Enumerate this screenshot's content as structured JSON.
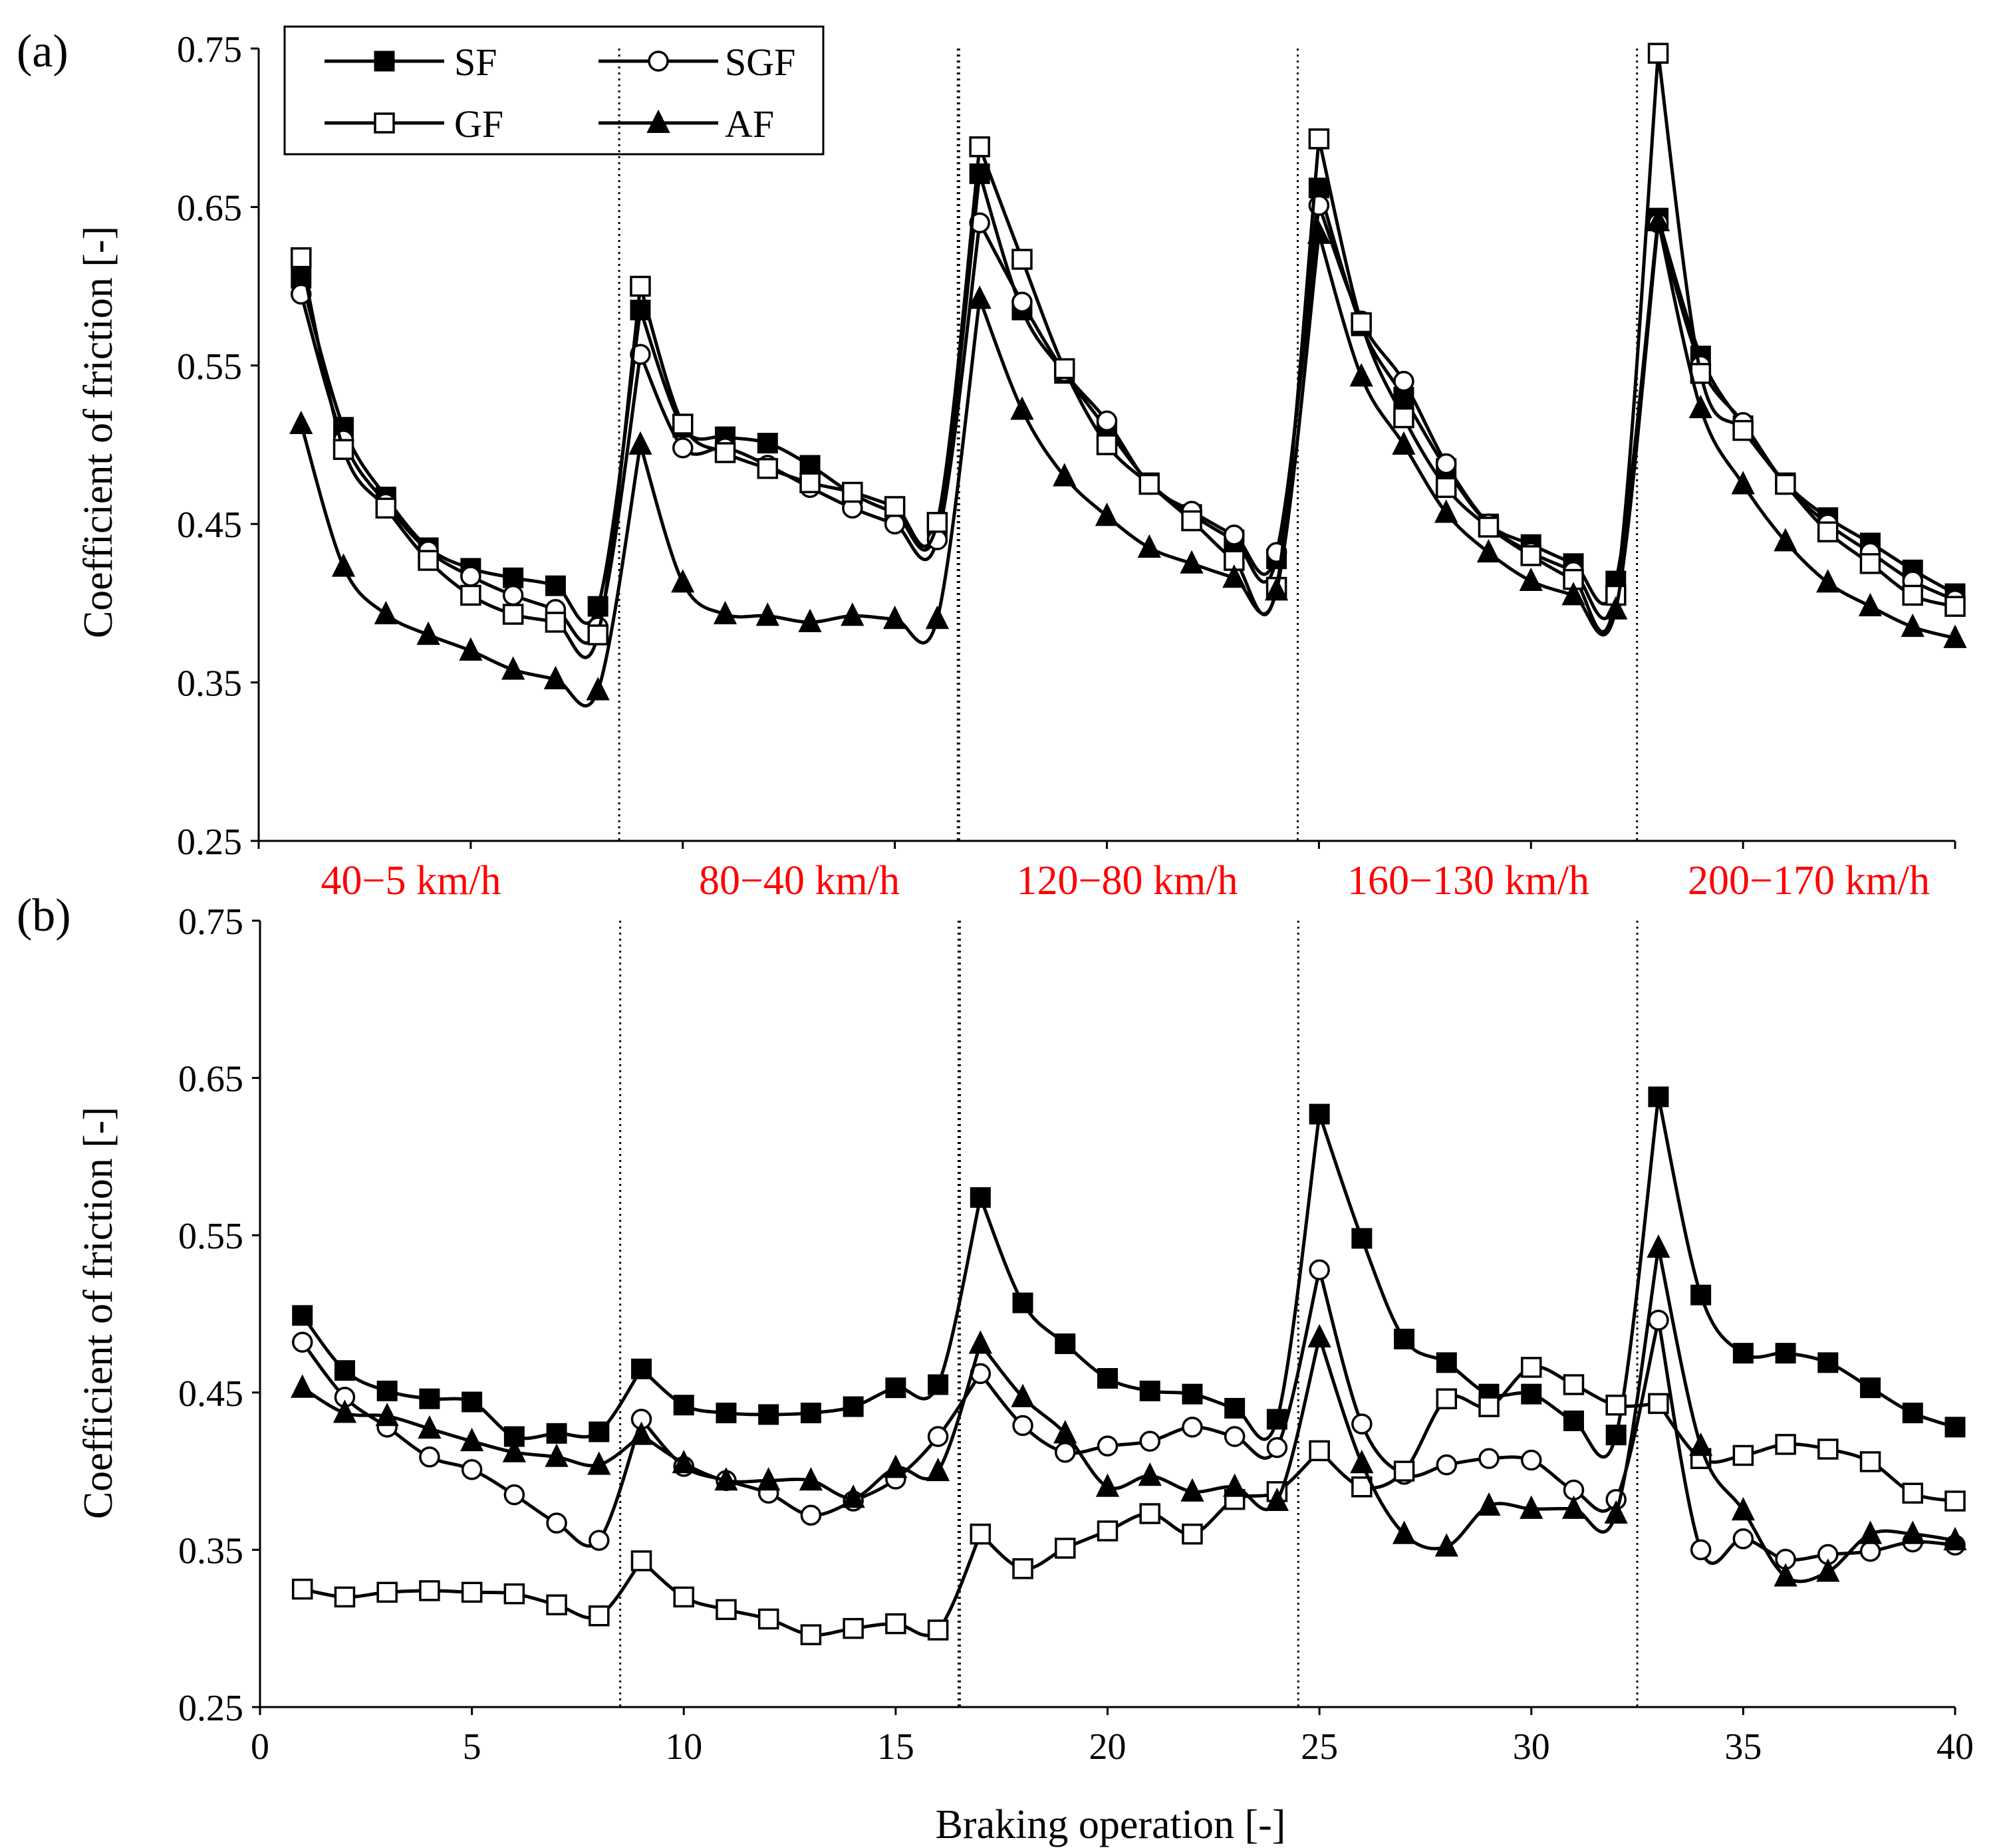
{
  "colors": {
    "axis": "#000000",
    "line": "#000000",
    "speed_label": "#ff0000",
    "background": "#ffffff"
  },
  "x_axis": {
    "label": "Braking operation [-]",
    "ticks": [
      0,
      5,
      10,
      15,
      20,
      25,
      30,
      35,
      40
    ],
    "tick_labels": [
      "0",
      "5",
      "10",
      "15",
      "20",
      "25",
      "30",
      "35",
      "40"
    ],
    "range": [
      0,
      40
    ]
  },
  "speed_ranges": [
    {
      "label": "40−5 km/h",
      "from": 0.5,
      "to": 8.5
    },
    {
      "label": "80−40 km/h",
      "from": 8.5,
      "to": 16.5
    },
    {
      "label": "120−80 km/h",
      "from": 16.5,
      "to": 24.5
    },
    {
      "label": "160−130 km/h",
      "from": 24.5,
      "to": 32.5
    },
    {
      "label": "200−170 km/h",
      "from": 32.5,
      "to": 40.5
    }
  ],
  "separators": [
    8.5,
    16.5,
    24.5,
    32.5
  ],
  "legend": [
    {
      "name": "SF",
      "marker": "square-filled"
    },
    {
      "name": "SGF",
      "marker": "circle-open"
    },
    {
      "name": "GF",
      "marker": "square-open"
    },
    {
      "name": "AF",
      "marker": "triangle-filled"
    }
  ],
  "chart_data": [
    {
      "panel": "(a)",
      "type": "line",
      "ylabel": "Coefficient of friction [-]",
      "xlabel": "",
      "ylim": [
        0.25,
        0.75
      ],
      "yticks": [
        0.25,
        0.35,
        0.45,
        0.55,
        0.65,
        0.75
      ],
      "ytick_labels": [
        "0.25",
        "0.35",
        "0.45",
        "0.55",
        "0.65",
        "0.75"
      ],
      "x": [
        1,
        2,
        3,
        4,
        5,
        6,
        7,
        8,
        9,
        10,
        11,
        12,
        13,
        14,
        15,
        16,
        17,
        18,
        19,
        20,
        21,
        22,
        23,
        24,
        25,
        26,
        27,
        28,
        29,
        30,
        31,
        32,
        33,
        34,
        35,
        36,
        37,
        38,
        39,
        40
      ],
      "series": [
        {
          "name": "SF",
          "marker": "square-filled",
          "values": [
            0.605,
            0.511,
            0.467,
            0.435,
            0.422,
            0.416,
            0.411,
            0.398,
            0.585,
            0.511,
            0.505,
            0.501,
            0.487,
            0.469,
            0.457,
            0.448,
            0.671,
            0.585,
            0.545,
            0.51,
            0.476,
            0.456,
            0.44,
            0.428,
            0.662,
            0.575,
            0.53,
            0.485,
            0.45,
            0.437,
            0.425,
            0.414,
            0.643,
            0.556,
            0.512,
            0.476,
            0.454,
            0.438,
            0.421,
            0.406
          ]
        },
        {
          "name": "SGF",
          "marker": "circle-open",
          "values": [
            0.595,
            0.503,
            0.463,
            0.433,
            0.417,
            0.405,
            0.396,
            0.385,
            0.557,
            0.498,
            0.498,
            0.487,
            0.473,
            0.46,
            0.45,
            0.44,
            0.64,
            0.59,
            0.546,
            0.515,
            0.475,
            0.458,
            0.443,
            0.432,
            0.651,
            0.578,
            0.54,
            0.488,
            0.45,
            0.432,
            0.42,
            0.404,
            0.64,
            0.55,
            0.514,
            0.475,
            0.45,
            0.432,
            0.414,
            0.402
          ]
        },
        {
          "name": "GF",
          "marker": "square-open",
          "values": [
            0.618,
            0.497,
            0.46,
            0.427,
            0.405,
            0.393,
            0.388,
            0.38,
            0.6,
            0.513,
            0.495,
            0.485,
            0.476,
            0.47,
            0.461,
            0.451,
            0.688,
            0.617,
            0.548,
            0.5,
            0.475,
            0.452,
            0.427,
            0.41,
            0.693,
            0.577,
            0.517,
            0.473,
            0.448,
            0.43,
            0.415,
            0.405,
            0.747,
            0.545,
            0.509,
            0.475,
            0.445,
            0.425,
            0.405,
            0.398
          ]
        },
        {
          "name": "AF",
          "marker": "triangle-filled",
          "values": [
            0.513,
            0.423,
            0.393,
            0.38,
            0.37,
            0.358,
            0.352,
            0.345,
            0.5,
            0.413,
            0.393,
            0.392,
            0.388,
            0.392,
            0.39,
            0.39,
            0.592,
            0.522,
            0.48,
            0.455,
            0.435,
            0.425,
            0.416,
            0.408,
            0.633,
            0.543,
            0.5,
            0.457,
            0.432,
            0.414,
            0.405,
            0.396,
            0.641,
            0.523,
            0.475,
            0.439,
            0.413,
            0.398,
            0.385,
            0.378
          ]
        }
      ]
    },
    {
      "panel": "(b)",
      "type": "line",
      "ylabel": "Coefficient of friction [-]",
      "xlabel": "Braking operation [-]",
      "ylim": [
        0.25,
        0.75
      ],
      "yticks": [
        0.25,
        0.35,
        0.45,
        0.55,
        0.65,
        0.75
      ],
      "ytick_labels": [
        "0.25",
        "0.35",
        "0.45",
        "0.55",
        "0.65",
        "0.75"
      ],
      "x": [
        1,
        2,
        3,
        4,
        5,
        6,
        7,
        8,
        9,
        10,
        11,
        12,
        13,
        14,
        15,
        16,
        17,
        18,
        19,
        20,
        21,
        22,
        23,
        24,
        25,
        26,
        27,
        28,
        29,
        30,
        31,
        32,
        33,
        34,
        35,
        36,
        37,
        38,
        39,
        40
      ],
      "series": [
        {
          "name": "SF",
          "marker": "square-filled",
          "values": [
            0.499,
            0.464,
            0.451,
            0.446,
            0.444,
            0.422,
            0.424,
            0.425,
            0.465,
            0.442,
            0.437,
            0.436,
            0.437,
            0.441,
            0.453,
            0.455,
            0.574,
            0.507,
            0.481,
            0.459,
            0.451,
            0.449,
            0.44,
            0.433,
            0.627,
            0.548,
            0.484,
            0.469,
            0.449,
            0.449,
            0.432,
            0.423,
            0.638,
            0.512,
            0.475,
            0.475,
            0.469,
            0.453,
            0.437,
            0.428
          ]
        },
        {
          "name": "SGF",
          "marker": "circle-open",
          "values": [
            0.482,
            0.447,
            0.428,
            0.409,
            0.401,
            0.385,
            0.367,
            0.356,
            0.433,
            0.403,
            0.394,
            0.386,
            0.372,
            0.381,
            0.395,
            0.422,
            0.462,
            0.429,
            0.412,
            0.416,
            0.419,
            0.428,
            0.422,
            0.415,
            0.528,
            0.43,
            0.398,
            0.404,
            0.408,
            0.407,
            0.388,
            0.382,
            0.496,
            0.35,
            0.357,
            0.344,
            0.347,
            0.349,
            0.355,
            0.353
          ]
        },
        {
          "name": "GF",
          "marker": "square-open",
          "values": [
            0.325,
            0.32,
            0.323,
            0.324,
            0.323,
            0.322,
            0.315,
            0.308,
            0.343,
            0.32,
            0.312,
            0.306,
            0.296,
            0.3,
            0.303,
            0.299,
            0.36,
            0.338,
            0.351,
            0.362,
            0.373,
            0.36,
            0.382,
            0.387,
            0.413,
            0.39,
            0.4,
            0.446,
            0.441,
            0.466,
            0.455,
            0.442,
            0.443,
            0.408,
            0.41,
            0.417,
            0.414,
            0.406,
            0.386,
            0.381
          ]
        },
        {
          "name": "AF",
          "marker": "triangle-filled",
          "values": [
            0.453,
            0.437,
            0.435,
            0.427,
            0.419,
            0.412,
            0.409,
            0.404,
            0.423,
            0.405,
            0.394,
            0.394,
            0.394,
            0.383,
            0.402,
            0.4,
            0.481,
            0.447,
            0.424,
            0.39,
            0.397,
            0.387,
            0.39,
            0.381,
            0.485,
            0.405,
            0.36,
            0.352,
            0.378,
            0.376,
            0.376,
            0.373,
            0.542,
            0.416,
            0.375,
            0.333,
            0.336,
            0.36,
            0.36,
            0.356
          ]
        }
      ]
    }
  ]
}
